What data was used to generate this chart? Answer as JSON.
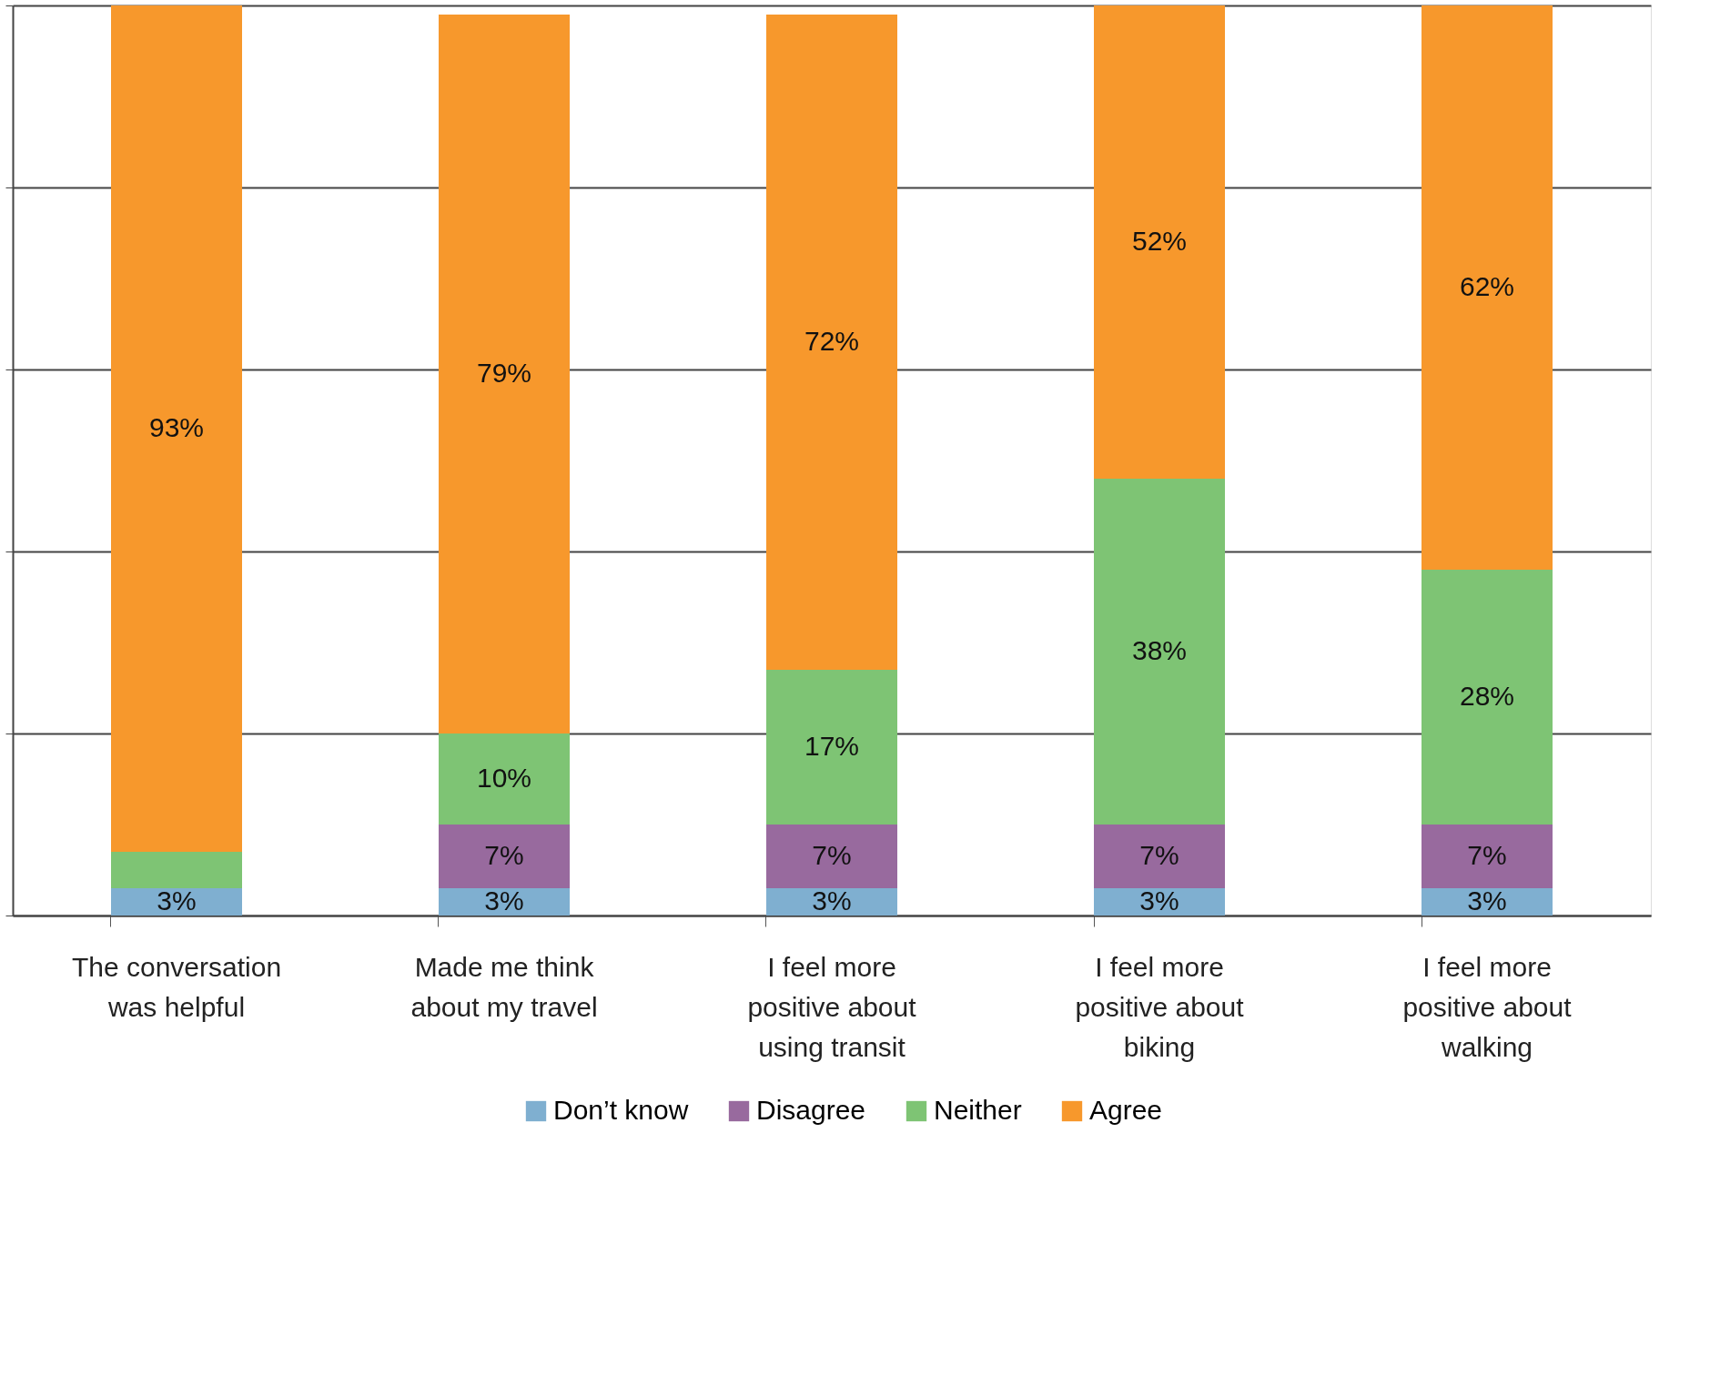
{
  "chart_data": {
    "type": "bar",
    "stacked": true,
    "categories": [
      "The conversation was helpful",
      "Made me think about my travel",
      "I feel more positive about using transit",
      "I feel more positive about biking",
      "I feel more positive about walking"
    ],
    "series": [
      {
        "name": "Don’t know",
        "color": "#7fafd0",
        "values": [
          3,
          3,
          3,
          3,
          3
        ],
        "value_labels": [
          "3%",
          "3%",
          "3%",
          "3%",
          "3%"
        ]
      },
      {
        "name": "Disagree",
        "color": "#986a9e",
        "values": [
          0,
          7,
          7,
          7,
          7
        ],
        "value_labels": [
          null,
          "7%",
          "7%",
          "7%",
          "7%"
        ]
      },
      {
        "name": "Neither",
        "color": "#7ec474",
        "values": [
          4,
          10,
          17,
          38,
          28
        ],
        "value_labels": [
          null,
          "10%",
          "17%",
          "38%",
          "28%"
        ]
      },
      {
        "name": "Agree",
        "color": "#f7982c",
        "values": [
          93,
          79,
          72,
          52,
          62
        ],
        "value_labels": [
          "93%",
          "79%",
          "72%",
          "52%",
          "62%"
        ]
      }
    ],
    "ylim": [
      0,
      100
    ],
    "yticks": [
      {
        "value": 0,
        "label": null
      },
      {
        "value": 20,
        "label": null
      },
      {
        "value": 40,
        "label": null
      },
      {
        "value": 60,
        "label": null
      },
      {
        "value": 80,
        "label": null
      },
      {
        "value": 100,
        "label": null
      }
    ],
    "tick_labels": "x",
    "grid": "y",
    "legend": "bottom"
  }
}
